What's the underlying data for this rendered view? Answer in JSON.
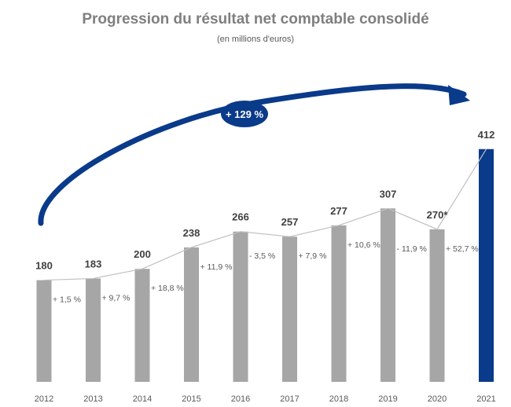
{
  "chart_data": {
    "type": "bar",
    "title": "Progression du résultat net comptable consolidé",
    "subtitle": "(en millions d'euros)",
    "categories": [
      "2012",
      "2013",
      "2014",
      "2015",
      "2016",
      "2017",
      "2018",
      "2019",
      "2020",
      "2021"
    ],
    "values": [
      180,
      183,
      200,
      238,
      266,
      257,
      277,
      307,
      270,
      412
    ],
    "value_labels": [
      "180",
      "183",
      "200",
      "238",
      "266",
      "257",
      "277",
      "307",
      "270*",
      "412"
    ],
    "growth_labels": [
      "+ 1,5 %",
      "+ 9,7 %",
      "+ 18,8 %",
      "+ 11,9 %",
      "- 3,5 %",
      "+ 7,9 %",
      "+ 10,6 %",
      "- 11,9 %",
      "+ 52,7 %"
    ],
    "highlight_index": 9,
    "overall_growth_label": "+ 129 %",
    "ylim": [
      0,
      420
    ],
    "colors": {
      "bar": "#a6a6a6",
      "highlight": "#0a3a8a",
      "line": "#c0c0c0",
      "title": "#7f7f7f",
      "text": "#595959"
    }
  }
}
